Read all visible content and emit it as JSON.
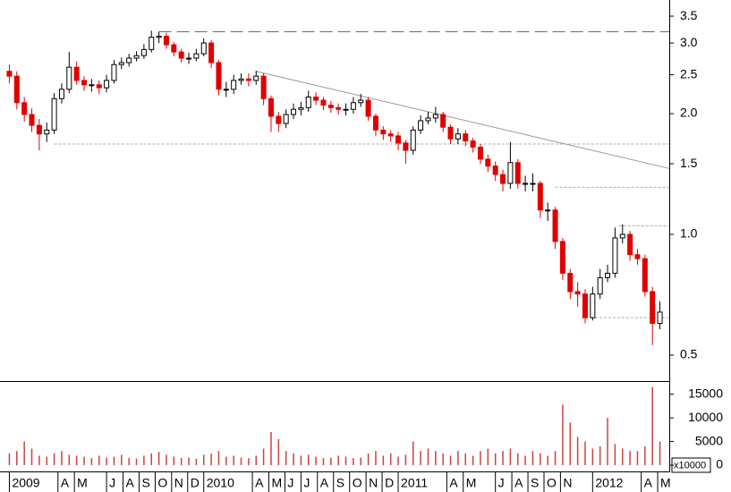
{
  "chart_data": {
    "type": "candlestick",
    "log_scale": true,
    "x": [
      0,
      2,
      4,
      6,
      8,
      10,
      12,
      14,
      16,
      18,
      20,
      22,
      24,
      26,
      28,
      30,
      32,
      34,
      36,
      38,
      40,
      42,
      44,
      46,
      48,
      50,
      52,
      54,
      56,
      58,
      60,
      62,
      64,
      66,
      68,
      70,
      72,
      74,
      76,
      78,
      80,
      82,
      84,
      86,
      88,
      90,
      92,
      94,
      96,
      98,
      100,
      102,
      104,
      106,
      108,
      110,
      112,
      114,
      116,
      118,
      120,
      122,
      124,
      126,
      128,
      130,
      132,
      134,
      136,
      138,
      140,
      142,
      144,
      146,
      148,
      150,
      152,
      154,
      156,
      158,
      160,
      162,
      164,
      166,
      168,
      170,
      172,
      174
    ],
    "open": [
      2.55,
      2.48,
      2.13,
      1.99,
      1.87,
      1.78,
      1.82,
      2.18,
      2.3,
      2.61,
      2.42,
      2.36,
      2.36,
      2.32,
      2.42,
      2.65,
      2.68,
      2.75,
      2.79,
      2.89,
      3.1,
      3.12,
      2.97,
      2.85,
      2.75,
      2.75,
      2.82,
      3.0,
      2.68,
      2.3,
      2.3,
      2.42,
      2.44,
      2.42,
      2.48,
      2.18,
      1.97,
      1.89,
      1.99,
      2.05,
      2.07,
      2.2,
      2.16,
      2.1,
      2.07,
      2.05,
      2.05,
      2.13,
      2.16,
      1.97,
      1.82,
      1.78,
      1.76,
      1.69,
      1.62,
      1.82,
      1.92,
      1.95,
      1.99,
      1.85,
      1.73,
      1.78,
      1.71,
      1.65,
      1.54,
      1.48,
      1.41,
      1.34,
      1.51,
      1.34,
      1.34,
      1.34,
      1.15,
      1.15,
      0.96,
      0.8,
      0.72,
      0.71,
      0.62,
      0.71,
      0.78,
      0.8,
      0.98,
      1.0,
      0.89,
      0.87,
      0.72,
      0.6
    ],
    "high": [
      2.65,
      2.55,
      2.2,
      2.06,
      1.94,
      1.9,
      2.25,
      2.38,
      2.85,
      2.7,
      2.48,
      2.44,
      2.42,
      2.5,
      2.72,
      2.76,
      2.82,
      2.86,
      2.98,
      3.22,
      3.2,
      3.18,
      3.02,
      2.9,
      2.84,
      2.9,
      3.08,
      3.05,
      2.72,
      2.4,
      2.5,
      2.52,
      2.52,
      2.56,
      2.52,
      2.22,
      2.02,
      2.05,
      2.12,
      2.14,
      2.28,
      2.26,
      2.2,
      2.15,
      2.12,
      2.12,
      2.2,
      2.24,
      2.2,
      2.0,
      1.86,
      1.82,
      1.8,
      1.72,
      1.86,
      1.98,
      2.02,
      2.08,
      2.02,
      1.88,
      1.84,
      1.82,
      1.74,
      1.68,
      1.58,
      1.52,
      1.45,
      1.7,
      1.54,
      1.4,
      1.42,
      1.36,
      1.2,
      1.17,
      0.98,
      0.82,
      0.76,
      0.73,
      0.74,
      0.82,
      0.84,
      1.04,
      1.06,
      1.02,
      0.92,
      0.89,
      0.74,
      0.68
    ],
    "low": [
      2.38,
      2.05,
      1.91,
      1.8,
      1.62,
      1.7,
      1.78,
      2.12,
      2.25,
      2.36,
      2.28,
      2.27,
      2.24,
      2.26,
      2.38,
      2.58,
      2.62,
      2.7,
      2.74,
      2.84,
      3.0,
      2.9,
      2.78,
      2.68,
      2.66,
      2.7,
      2.78,
      2.6,
      2.22,
      2.2,
      2.24,
      2.36,
      2.34,
      2.36,
      2.1,
      1.8,
      1.8,
      1.84,
      1.94,
      1.98,
      2.02,
      2.1,
      2.04,
      2.01,
      1.99,
      1.98,
      2.0,
      2.08,
      1.92,
      1.76,
      1.72,
      1.7,
      1.62,
      1.5,
      1.58,
      1.78,
      1.88,
      1.9,
      1.8,
      1.68,
      1.68,
      1.66,
      1.6,
      1.5,
      1.43,
      1.36,
      1.28,
      1.3,
      1.3,
      1.28,
      1.28,
      1.1,
      1.08,
      0.92,
      0.77,
      0.69,
      0.66,
      0.6,
      0.61,
      0.69,
      0.76,
      0.78,
      0.95,
      0.86,
      0.84,
      0.7,
      0.53,
      0.58
    ],
    "close": [
      2.48,
      2.13,
      1.99,
      1.87,
      1.78,
      1.82,
      2.18,
      2.3,
      2.61,
      2.42,
      2.36,
      2.36,
      2.32,
      2.42,
      2.65,
      2.68,
      2.75,
      2.79,
      2.89,
      3.1,
      3.12,
      2.97,
      2.85,
      2.75,
      2.75,
      2.82,
      3.0,
      2.68,
      2.3,
      2.3,
      2.42,
      2.44,
      2.42,
      2.48,
      2.18,
      1.97,
      1.89,
      1.99,
      2.05,
      2.07,
      2.2,
      2.16,
      2.1,
      2.07,
      2.05,
      2.05,
      2.13,
      2.16,
      1.97,
      1.82,
      1.78,
      1.76,
      1.69,
      1.62,
      1.82,
      1.92,
      1.95,
      1.99,
      1.85,
      1.73,
      1.78,
      1.71,
      1.65,
      1.54,
      1.48,
      1.41,
      1.34,
      1.51,
      1.34,
      1.34,
      1.34,
      1.15,
      1.15,
      0.96,
      0.8,
      0.72,
      0.71,
      0.62,
      0.71,
      0.78,
      0.8,
      0.98,
      1.0,
      0.89,
      0.87,
      0.72,
      0.6,
      0.64
    ],
    "volume": [
      2500,
      3000,
      5000,
      3500,
      2000,
      1800,
      2500,
      3000,
      2200,
      2000,
      1800,
      1500,
      2000,
      1600,
      1800,
      2200,
      1500,
      1400,
      2000,
      2500,
      2800,
      2200,
      1800,
      1500,
      1600,
      1400,
      2200,
      2500,
      3000,
      1800,
      2000,
      1600,
      1500,
      2000,
      3500,
      7000,
      5500,
      3000,
      2500,
      2000,
      2200,
      1800,
      1500,
      1600,
      2000,
      1800,
      1500,
      1600,
      2500,
      3000,
      2000,
      2500,
      1800,
      2200,
      5000,
      3000,
      3500,
      3000,
      2500,
      2000,
      3000,
      2500,
      2000,
      3000,
      3500,
      2500,
      3000,
      3500,
      2500,
      2000,
      3000,
      2500,
      2000,
      3000,
      12800,
      9000,
      6000,
      5000,
      3500,
      4000,
      10000,
      4500,
      3500,
      3000,
      3000,
      4000,
      16500,
      5000
    ],
    "up_color": "#ffffff",
    "down_color": "#e00000",
    "volume_color": "#d04040",
    "xlim": [
      -2.5,
      176.5
    ],
    "xticks": [
      {
        "value": 0,
        "label": "2009"
      },
      {
        "value": 13,
        "label": "A"
      },
      {
        "value": 17.4,
        "label": "M"
      },
      {
        "value": 26,
        "label": "J"
      },
      {
        "value": 30.4,
        "label": "A"
      },
      {
        "value": 34.7,
        "label": "S"
      },
      {
        "value": 39,
        "label": "O"
      },
      {
        "value": 43.4,
        "label": "N"
      },
      {
        "value": 47.7,
        "label": "D"
      },
      {
        "value": 52,
        "label": "2010"
      },
      {
        "value": 65,
        "label": "A"
      },
      {
        "value": 69.4,
        "label": "M"
      },
      {
        "value": 73.7,
        "label": "J"
      },
      {
        "value": 78,
        "label": "J"
      },
      {
        "value": 82.4,
        "label": "A"
      },
      {
        "value": 86.7,
        "label": "S"
      },
      {
        "value": 91,
        "label": "O"
      },
      {
        "value": 95.4,
        "label": "N"
      },
      {
        "value": 99.7,
        "label": "D"
      },
      {
        "value": 104,
        "label": "2011"
      },
      {
        "value": 117,
        "label": "A"
      },
      {
        "value": 121.4,
        "label": "M"
      },
      {
        "value": 130,
        "label": "J"
      },
      {
        "value": 134.4,
        "label": "A"
      },
      {
        "value": 138.7,
        "label": "S"
      },
      {
        "value": 143,
        "label": "O"
      },
      {
        "value": 147.4,
        "label": "N"
      },
      {
        "value": 156,
        "label": "2012"
      },
      {
        "value": 169,
        "label": "A"
      },
      {
        "value": 173.4,
        "label": "M"
      }
    ],
    "ylim": [
      0.433,
      3.84
    ],
    "yticks": [
      0.5,
      {
        "value": 1,
        "label": "1.0"
      },
      1.5,
      {
        "value": 2,
        "label": "2.0"
      },
      2.5,
      {
        "value": 3,
        "label": "3.0"
      },
      3.5
    ],
    "volume_ylim": [
      0,
      17600
    ],
    "volume_yticks": [
      0,
      5000,
      10000,
      15000
    ],
    "volume_unit": "x10000",
    "hlines": [
      {
        "value": 3.2,
        "from": 40,
        "style": "dashed"
      },
      {
        "value": 1.68,
        "from": 12,
        "style": "dotted"
      },
      {
        "value": 1.31,
        "from": 146,
        "style": "dotted"
      },
      {
        "value": 1.05,
        "from": 163,
        "style": "dotted"
      },
      {
        "value": 0.62,
        "from": 153,
        "style": "dotted"
      }
    ],
    "trendline": {
      "x": [
        66,
        176.5
      ],
      "y": [
        2.55,
        1.46
      ]
    }
  }
}
